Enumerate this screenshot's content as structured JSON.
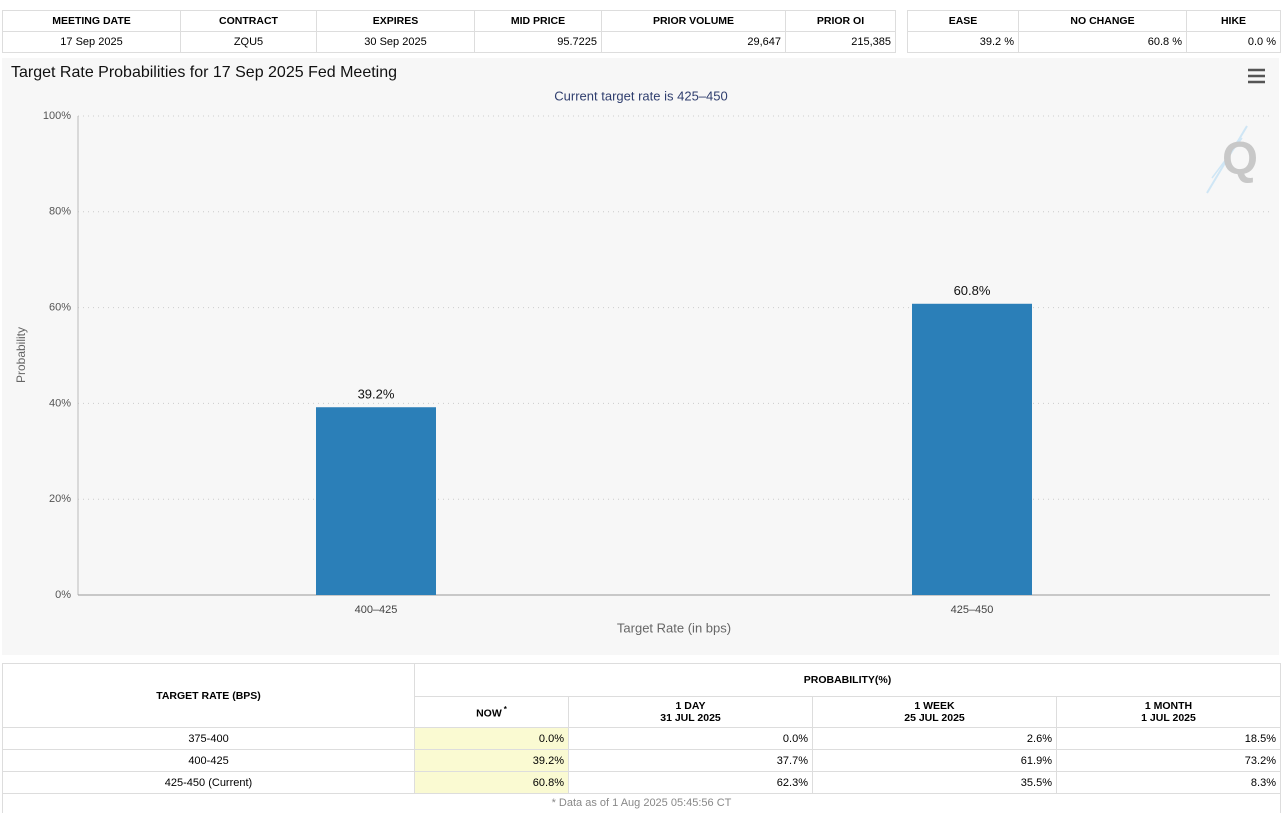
{
  "summary_table": {
    "headers": [
      "MEETING DATE",
      "CONTRACT",
      "EXPIRES",
      "MID PRICE",
      "PRIOR VOLUME",
      "PRIOR OI"
    ],
    "rows": [
      [
        "17 Sep 2025",
        "ZQU5",
        "30 Sep 2025",
        "95.7225",
        "29,647",
        "215,385"
      ]
    ]
  },
  "ease_table": {
    "headers": [
      "EASE",
      "NO CHANGE",
      "HIKE"
    ],
    "rows": [
      [
        "39.2 %",
        "60.8 %",
        "0.0 %"
      ]
    ]
  },
  "chart_data": {
    "type": "bar",
    "title": "Target Rate Probabilities for 17 Sep 2025 Fed Meeting",
    "subtitle": "Current target rate is 425–450",
    "categories": [
      "400–425",
      "425–450"
    ],
    "values": [
      39.2,
      60.8
    ],
    "value_labels": [
      "39.2%",
      "60.8%"
    ],
    "color": "#2b7fb8",
    "xlabel": "Target Rate (in bps)",
    "ylabel": "Probability",
    "ylim": [
      0,
      100
    ],
    "yticks": [
      {
        "value": 0,
        "label": "0%"
      },
      {
        "value": 20,
        "label": "20%"
      },
      {
        "value": 40,
        "label": "40%"
      },
      {
        "value": 60,
        "label": "60%"
      },
      {
        "value": 80,
        "label": "80%"
      },
      {
        "value": 100,
        "label": "100%"
      }
    ],
    "grid": true
  },
  "probability_table": {
    "row_header": "TARGET RATE (BPS)",
    "group_header": "PROBABILITY(%)",
    "columns": [
      {
        "label": "NOW",
        "note": "*"
      },
      {
        "label": "1 DAY",
        "date": "31 JUL 2025"
      },
      {
        "label": "1 WEEK",
        "date": "25 JUL 2025"
      },
      {
        "label": "1 MONTH",
        "date": "1 JUL 2025"
      }
    ],
    "rows": [
      [
        "375-400",
        "0.0%",
        "0.0%",
        "2.6%",
        "18.5%"
      ],
      [
        "400-425",
        "39.2%",
        "37.7%",
        "61.9%",
        "73.2%"
      ],
      [
        "425-450 (Current)",
        "60.8%",
        "62.3%",
        "35.5%",
        "8.3%"
      ]
    ],
    "footnote": "* Data as of 1 Aug 2025 05:45:56 CT"
  }
}
